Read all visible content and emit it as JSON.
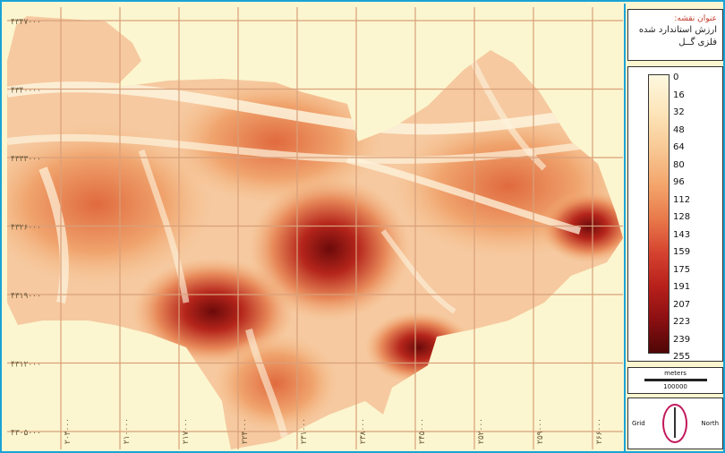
{
  "map": {
    "y_labels": [
      "۴۳۴۷۰۰۰",
      "۴۳۴۰۰۰۰",
      "۴۳۳۳۰۰۰",
      "۴۳۲۶۰۰۰",
      "۴۳۱۹۰۰۰",
      "۴۳۱۲۰۰۰",
      "۴۳۰۵۰۰۰"
    ],
    "x_labels": [
      "۲۰۳۰۰۰",
      "۲۱۰۰۰۰",
      "۲۱۷۰۰۰",
      "۲۲۴۰۰۰",
      "۲۳۱۰۰۰",
      "۲۳۸۰۰۰",
      "۲۴۵۰۰۰",
      "۲۵۲۰۰۰",
      "۲۵۹۰۰۰",
      "۲۶۶۰۰۰"
    ],
    "colors": {
      "background": "#fbf6cf",
      "grid": "#d9a07a",
      "frame": "#1aa3d6"
    }
  },
  "title": {
    "label": "عنوان نقشه:",
    "text": "ارزش استاندارد شده فلزی گــل"
  },
  "legend": {
    "values": [
      "0",
      "16",
      "32",
      "48",
      "64",
      "80",
      "96",
      "112",
      "128",
      "143",
      "159",
      "175",
      "191",
      "207",
      "223",
      "239",
      "255"
    ],
    "ramp": [
      "#fdf8df",
      "#fde4b8",
      "#f8c793",
      "#f3a46a",
      "#e8784a",
      "#d5432f",
      "#b7201b",
      "#8b0f12",
      "#4f0606"
    ]
  },
  "scale": {
    "unit": "meters",
    "value": "100000"
  },
  "north": {
    "grid_label": "Grid",
    "north_label": "North"
  }
}
